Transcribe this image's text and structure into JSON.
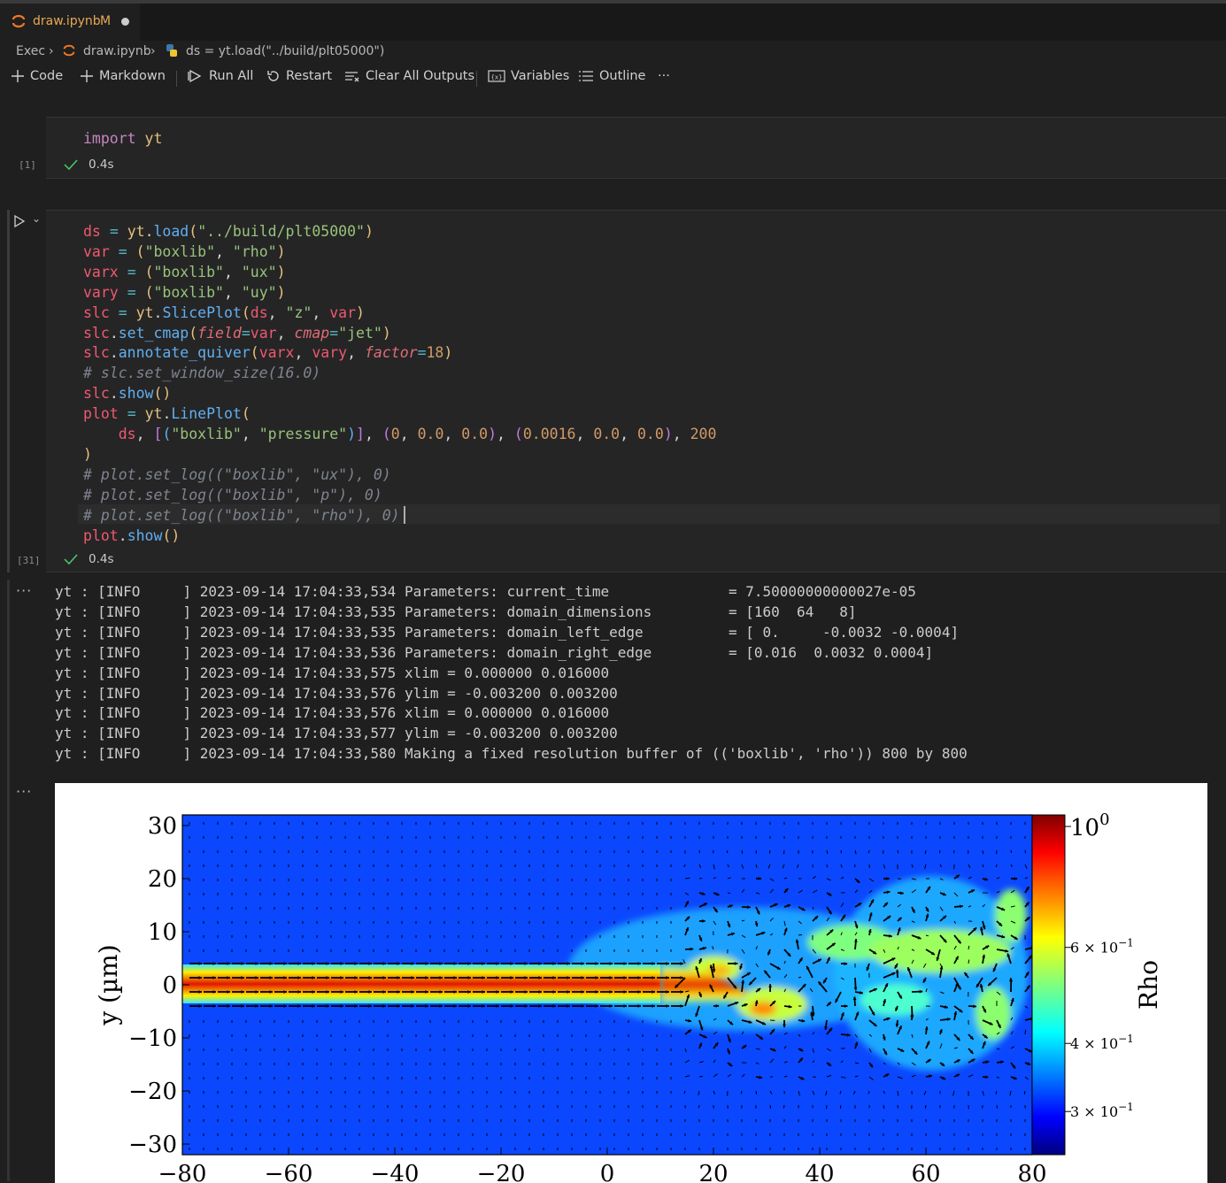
{
  "tab": {
    "filename": "draw.ipynb",
    "modified": "M",
    "icon": "jupyter-icon"
  },
  "breadcrumb": {
    "item1": "Exec",
    "item2": "draw.ipynb",
    "item3": "ds = yt.load(\"../build/plt05000\")"
  },
  "toolbar": {
    "code": "Code",
    "markdown": "Markdown",
    "run_all": "Run All",
    "restart": "Restart",
    "clear_outputs": "Clear All Outputs",
    "variables": "Variables",
    "outline": "Outline",
    "more": "···"
  },
  "cell1": {
    "exec_count": "[1]",
    "time": "0.4s"
  },
  "cell2": {
    "exec_count": "[31]",
    "time": "0.4s"
  },
  "output_ellipsis": "···",
  "log_lines": [
    "yt : [INFO     ] 2023-09-14 17:04:33,534 Parameters: current_time              = 7.50000000000027e-05",
    "yt : [INFO     ] 2023-09-14 17:04:33,535 Parameters: domain_dimensions         = [160  64   8]",
    "yt : [INFO     ] 2023-09-14 17:04:33,535 Parameters: domain_left_edge          = [ 0.     -0.0032 -0.0004]",
    "yt : [INFO     ] 2023-09-14 17:04:33,536 Parameters: domain_right_edge         = [0.016  0.0032 0.0004]",
    "yt : [INFO     ] 2023-09-14 17:04:33,575 xlim = 0.000000 0.016000",
    "yt : [INFO     ] 2023-09-14 17:04:33,576 ylim = -0.003200 0.003200",
    "yt : [INFO     ] 2023-09-14 17:04:33,576 xlim = 0.000000 0.016000",
    "yt : [INFO     ] 2023-09-14 17:04:33,577 ylim = -0.003200 0.003200",
    "yt : [INFO     ] 2023-09-14 17:04:33,580 Making a fixed resolution buffer of (('boxlib', 'rho')) 800 by 800"
  ],
  "chart_data": {
    "type": "heatmap",
    "title": "",
    "xlabel": "",
    "ylabel": "y (µm)",
    "colorbar_label": "Rho",
    "xlim": [
      -80,
      80
    ],
    "ylim": [
      -32,
      32
    ],
    "x_ticks": [
      "−80",
      "−60",
      "−40",
      "−20",
      "0",
      "20",
      "40",
      "60",
      "80"
    ],
    "y_ticks": [
      "30",
      "20",
      "10",
      "0",
      "−10",
      "−20",
      "−30"
    ],
    "colorbar_ticks": [
      {
        "value": 1.0,
        "label_base": "10",
        "label_exp": "0"
      },
      {
        "value": 0.6,
        "label": "6 × 10",
        "label_exp": "−1"
      },
      {
        "value": 0.4,
        "label": "4 × 10",
        "label_exp": "−1"
      },
      {
        "value": 0.3,
        "label": "3 × 10",
        "label_exp": "−1"
      }
    ],
    "colorbar_range": [
      0.25,
      1.05
    ],
    "colormap": "jet",
    "log_scale": true
  }
}
